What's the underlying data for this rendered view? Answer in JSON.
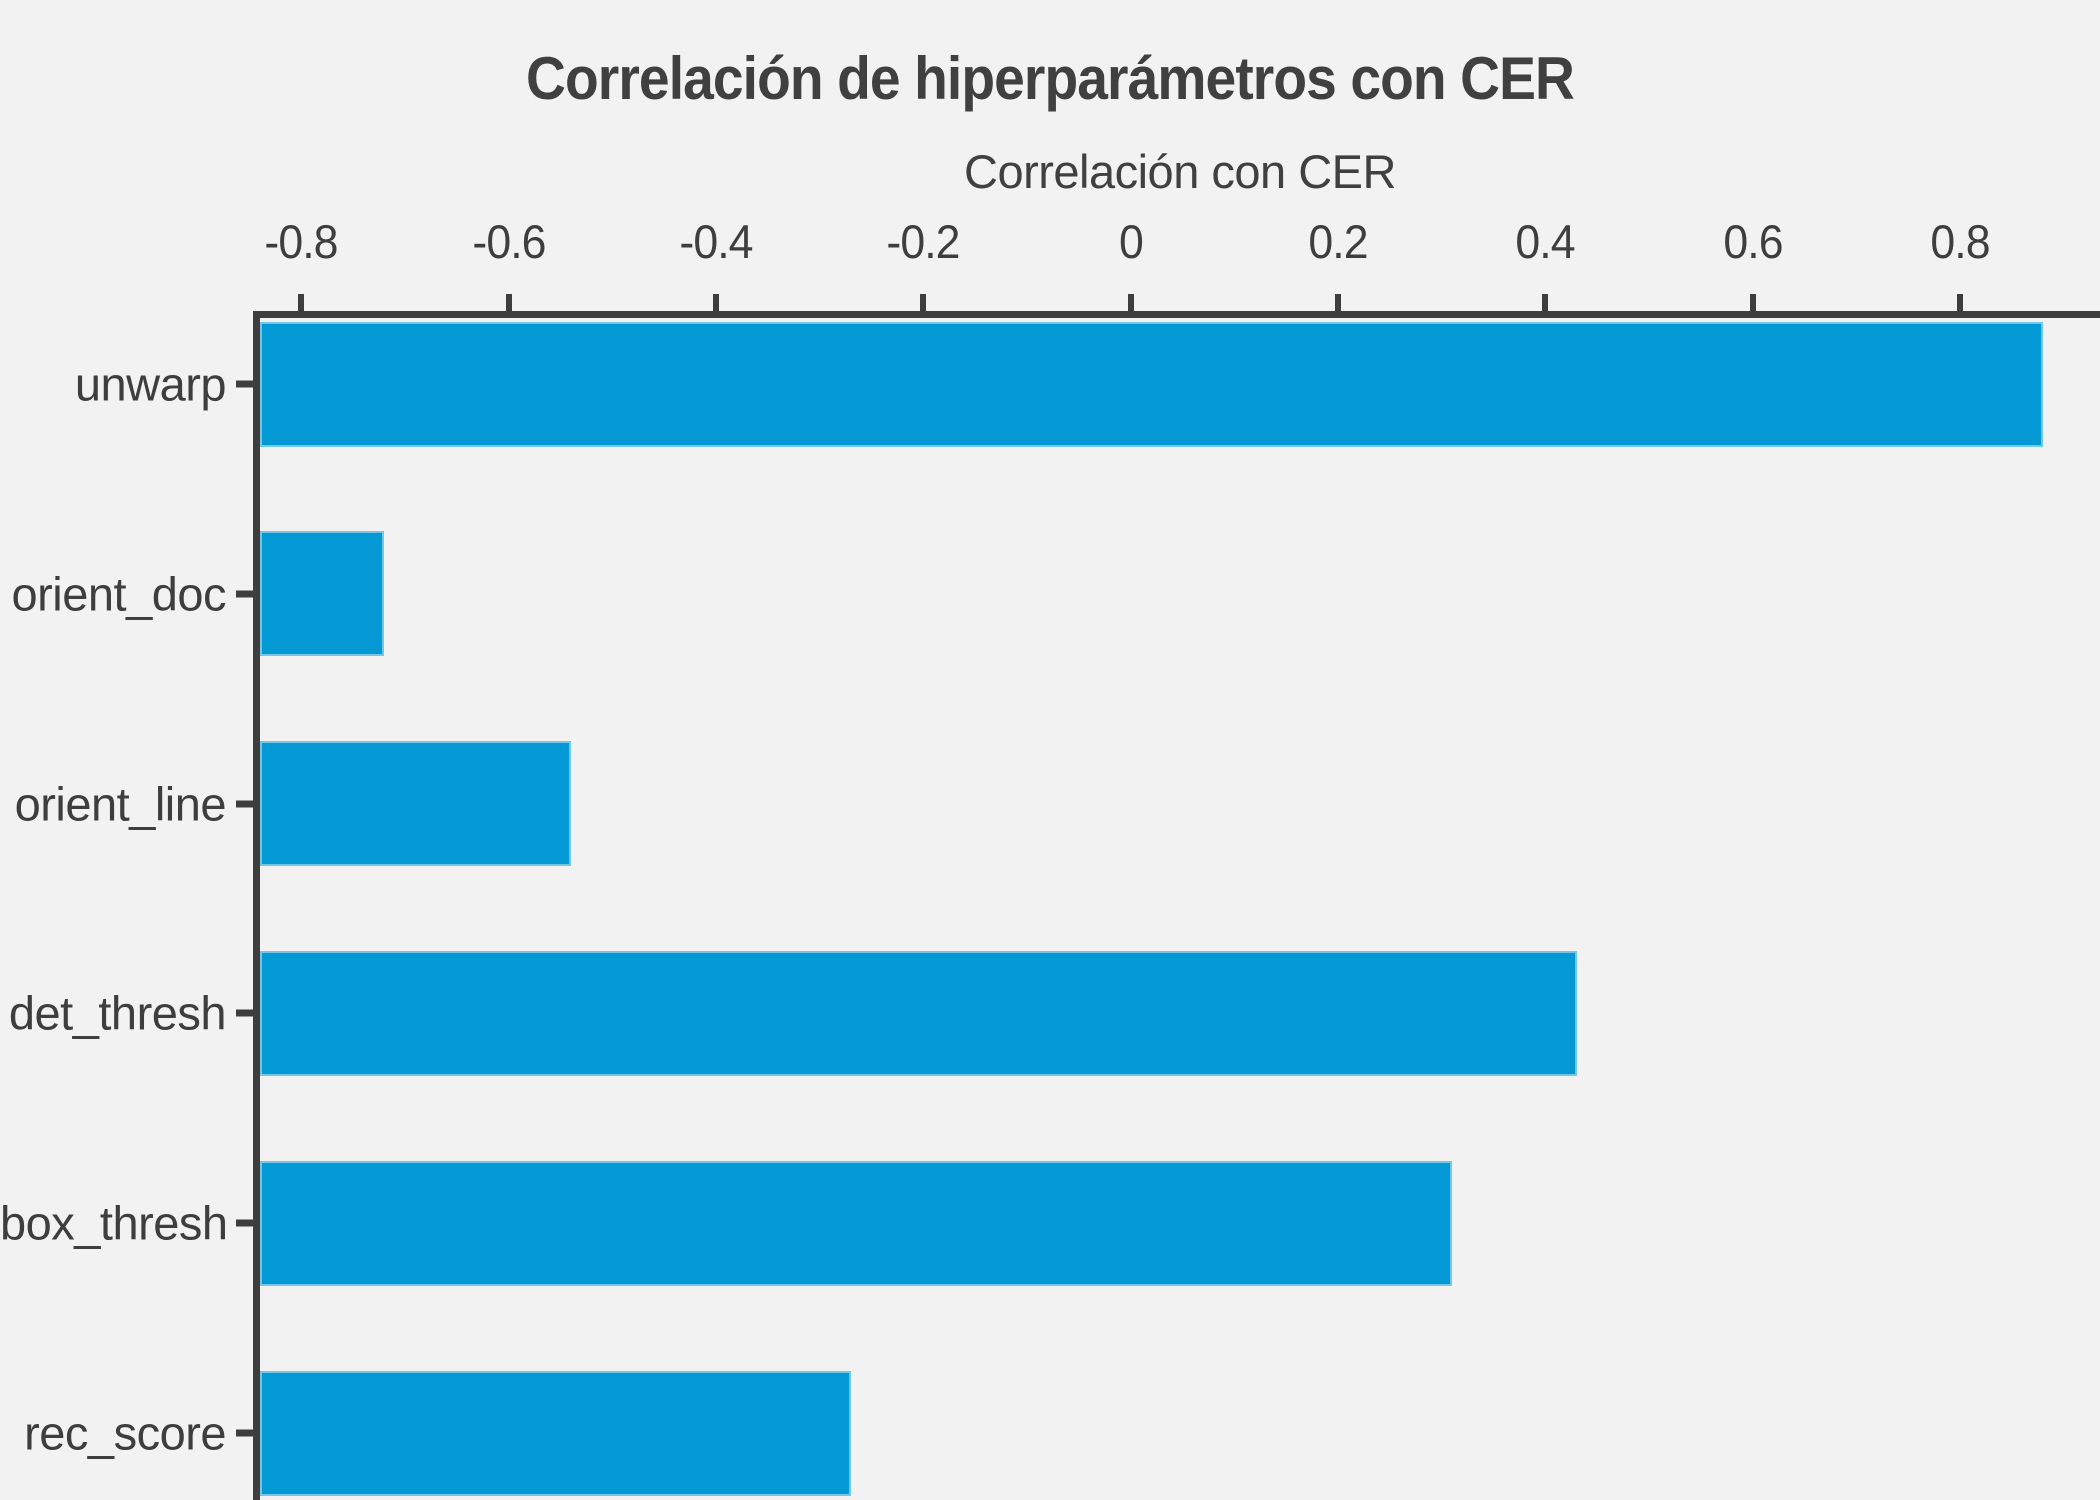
{
  "chart_data": {
    "type": "bar",
    "orientation": "horizontal",
    "title": "Correlación de hiperparámetros con CER",
    "xlabel": "Correlación con CER",
    "ylabel": "",
    "categories": [
      "unwarp",
      "orient_doc",
      "orient_line",
      "det_thresh",
      "box_thresh",
      "rec_score"
    ],
    "values": [
      0.88,
      -0.72,
      -0.54,
      0.43,
      0.31,
      -0.27
    ],
    "xticks": [
      -0.8,
      -0.6,
      -0.4,
      -0.2,
      0,
      0.2,
      0.4,
      0.6,
      0.8
    ],
    "xtick_labels": [
      "-0.8",
      "-0.6",
      "-0.4",
      "-0.2",
      "0",
      "0.2",
      "0.4",
      "0.6",
      "0.8"
    ],
    "xlim": [
      -0.84,
      0.935
    ],
    "grid": false,
    "legend": null,
    "bars_start_at_plot_left_edge": true,
    "axis_ticks_position": "top",
    "colors": {
      "background": "#f2f2f2",
      "bar_fill": "#0499d4",
      "bar_edge": "#a9d9ee",
      "axis_line": "#3e3e3e",
      "text": "#404040"
    }
  }
}
